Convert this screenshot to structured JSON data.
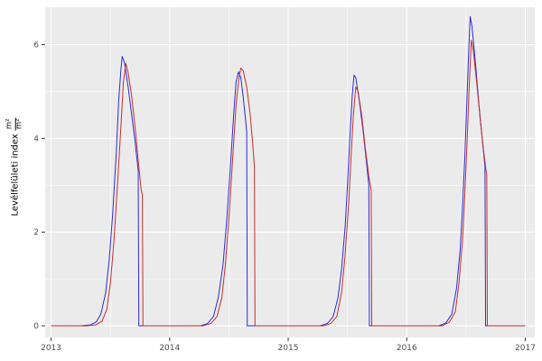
{
  "chart_data": {
    "type": "line",
    "title": "",
    "xlabel": "",
    "ylabel": {
      "text": "Levélfelületi index",
      "fraction_numerator": "m²",
      "fraction_denominator": "m²"
    },
    "x_domain": [
      2012.95,
      2017.08
    ],
    "y_domain": [
      -0.25,
      6.8
    ],
    "x_major_ticks": [
      2013,
      2014,
      2015,
      2016,
      2017
    ],
    "x_minor_ticks": [
      2013.5,
      2014.5,
      2015.5,
      2016.5
    ],
    "y_major_ticks": [
      0,
      2,
      4,
      6
    ],
    "y_minor_ticks": [
      1,
      3,
      5
    ],
    "grid": "on",
    "legend_position": "none",
    "panel_bg": "#ebebeb",
    "grid_color": "#ffffff",
    "tick_mark_color": "#333333",
    "tick_label_color": "#4d4d4d",
    "series": [
      {
        "name": "blue-line",
        "color": "#2b2bdb",
        "points": [
          [
            2013.0,
            0
          ],
          [
            2013.25,
            0
          ],
          [
            2013.33,
            0.02
          ],
          [
            2013.38,
            0.08
          ],
          [
            2013.42,
            0.25
          ],
          [
            2013.46,
            0.7
          ],
          [
            2013.49,
            1.4
          ],
          [
            2013.52,
            2.4
          ],
          [
            2013.55,
            3.7
          ],
          [
            2013.57,
            4.8
          ],
          [
            2013.59,
            5.5
          ],
          [
            2013.6,
            5.75
          ],
          [
            2013.62,
            5.6
          ],
          [
            2013.65,
            5.1
          ],
          [
            2013.68,
            4.5
          ],
          [
            2013.71,
            3.9
          ],
          [
            2013.735,
            3.3
          ],
          [
            2013.74,
            0
          ],
          [
            2014.0,
            0
          ],
          [
            2014.26,
            0
          ],
          [
            2014.32,
            0.05
          ],
          [
            2014.37,
            0.2
          ],
          [
            2014.41,
            0.6
          ],
          [
            2014.45,
            1.3
          ],
          [
            2014.48,
            2.2
          ],
          [
            2014.51,
            3.3
          ],
          [
            2014.54,
            4.5
          ],
          [
            2014.56,
            5.2
          ],
          [
            2014.58,
            5.42
          ],
          [
            2014.6,
            5.3
          ],
          [
            2014.62,
            4.9
          ],
          [
            2014.64,
            4.4
          ],
          [
            2014.65,
            4.15
          ],
          [
            2014.655,
            0
          ],
          [
            2015.0,
            0
          ],
          [
            2015.27,
            0
          ],
          [
            2015.33,
            0.05
          ],
          [
            2015.38,
            0.2
          ],
          [
            2015.42,
            0.6
          ],
          [
            2015.45,
            1.2
          ],
          [
            2015.48,
            2.1
          ],
          [
            2015.5,
            3.0
          ],
          [
            2015.52,
            4.0
          ],
          [
            2015.54,
            4.9
          ],
          [
            2015.555,
            5.35
          ],
          [
            2015.57,
            5.3
          ],
          [
            2015.6,
            4.8
          ],
          [
            2015.63,
            4.2
          ],
          [
            2015.66,
            3.5
          ],
          [
            2015.68,
            3.0
          ],
          [
            2015.685,
            0
          ],
          [
            2016.0,
            0
          ],
          [
            2016.27,
            0
          ],
          [
            2016.33,
            0.06
          ],
          [
            2016.38,
            0.25
          ],
          [
            2016.42,
            0.8
          ],
          [
            2016.45,
            1.6
          ],
          [
            2016.47,
            2.5
          ],
          [
            2016.49,
            3.6
          ],
          [
            2016.51,
            5.0
          ],
          [
            2016.525,
            6.0
          ],
          [
            2016.535,
            6.6
          ],
          [
            2016.55,
            6.4
          ],
          [
            2016.58,
            5.6
          ],
          [
            2016.61,
            4.7
          ],
          [
            2016.64,
            3.9
          ],
          [
            2016.66,
            3.4
          ],
          [
            2016.665,
            0
          ],
          [
            2017.0,
            0
          ]
        ]
      },
      {
        "name": "red-line",
        "color": "#c03030",
        "points": [
          [
            2013.0,
            0
          ],
          [
            2013.3,
            0
          ],
          [
            2013.38,
            0.02
          ],
          [
            2013.43,
            0.1
          ],
          [
            2013.47,
            0.35
          ],
          [
            2013.5,
            0.9
          ],
          [
            2013.53,
            1.8
          ],
          [
            2013.56,
            3.0
          ],
          [
            2013.59,
            4.3
          ],
          [
            2013.61,
            5.2
          ],
          [
            2013.63,
            5.6
          ],
          [
            2013.65,
            5.4
          ],
          [
            2013.68,
            4.9
          ],
          [
            2013.71,
            4.2
          ],
          [
            2013.74,
            3.4
          ],
          [
            2013.76,
            2.9
          ],
          [
            2013.77,
            2.8
          ],
          [
            2013.775,
            0
          ],
          [
            2014.0,
            0
          ],
          [
            2014.28,
            0
          ],
          [
            2014.35,
            0.05
          ],
          [
            2014.4,
            0.2
          ],
          [
            2014.44,
            0.6
          ],
          [
            2014.47,
            1.3
          ],
          [
            2014.5,
            2.3
          ],
          [
            2014.53,
            3.5
          ],
          [
            2014.56,
            4.7
          ],
          [
            2014.585,
            5.3
          ],
          [
            2014.6,
            5.5
          ],
          [
            2014.62,
            5.45
          ],
          [
            2014.65,
            5.1
          ],
          [
            2014.68,
            4.5
          ],
          [
            2014.7,
            3.9
          ],
          [
            2014.715,
            3.4
          ],
          [
            2014.72,
            0
          ],
          [
            2015.0,
            0
          ],
          [
            2015.3,
            0
          ],
          [
            2015.36,
            0.05
          ],
          [
            2015.41,
            0.2
          ],
          [
            2015.45,
            0.7
          ],
          [
            2015.48,
            1.5
          ],
          [
            2015.51,
            2.6
          ],
          [
            2015.53,
            3.6
          ],
          [
            2015.55,
            4.5
          ],
          [
            2015.57,
            5.1
          ],
          [
            2015.59,
            5.0
          ],
          [
            2015.62,
            4.5
          ],
          [
            2015.65,
            3.8
          ],
          [
            2015.68,
            3.2
          ],
          [
            2015.7,
            2.9
          ],
          [
            2015.705,
            0
          ],
          [
            2016.0,
            0
          ],
          [
            2016.3,
            0
          ],
          [
            2016.36,
            0.08
          ],
          [
            2016.41,
            0.3
          ],
          [
            2016.44,
            0.9
          ],
          [
            2016.47,
            1.8
          ],
          [
            2016.49,
            2.8
          ],
          [
            2016.51,
            4.0
          ],
          [
            2016.53,
            5.3
          ],
          [
            2016.545,
            6.1
          ],
          [
            2016.56,
            5.9
          ],
          [
            2016.59,
            5.2
          ],
          [
            2016.62,
            4.4
          ],
          [
            2016.65,
            3.7
          ],
          [
            2016.675,
            3.2
          ],
          [
            2016.68,
            0
          ],
          [
            2017.0,
            0
          ]
        ]
      }
    ]
  }
}
